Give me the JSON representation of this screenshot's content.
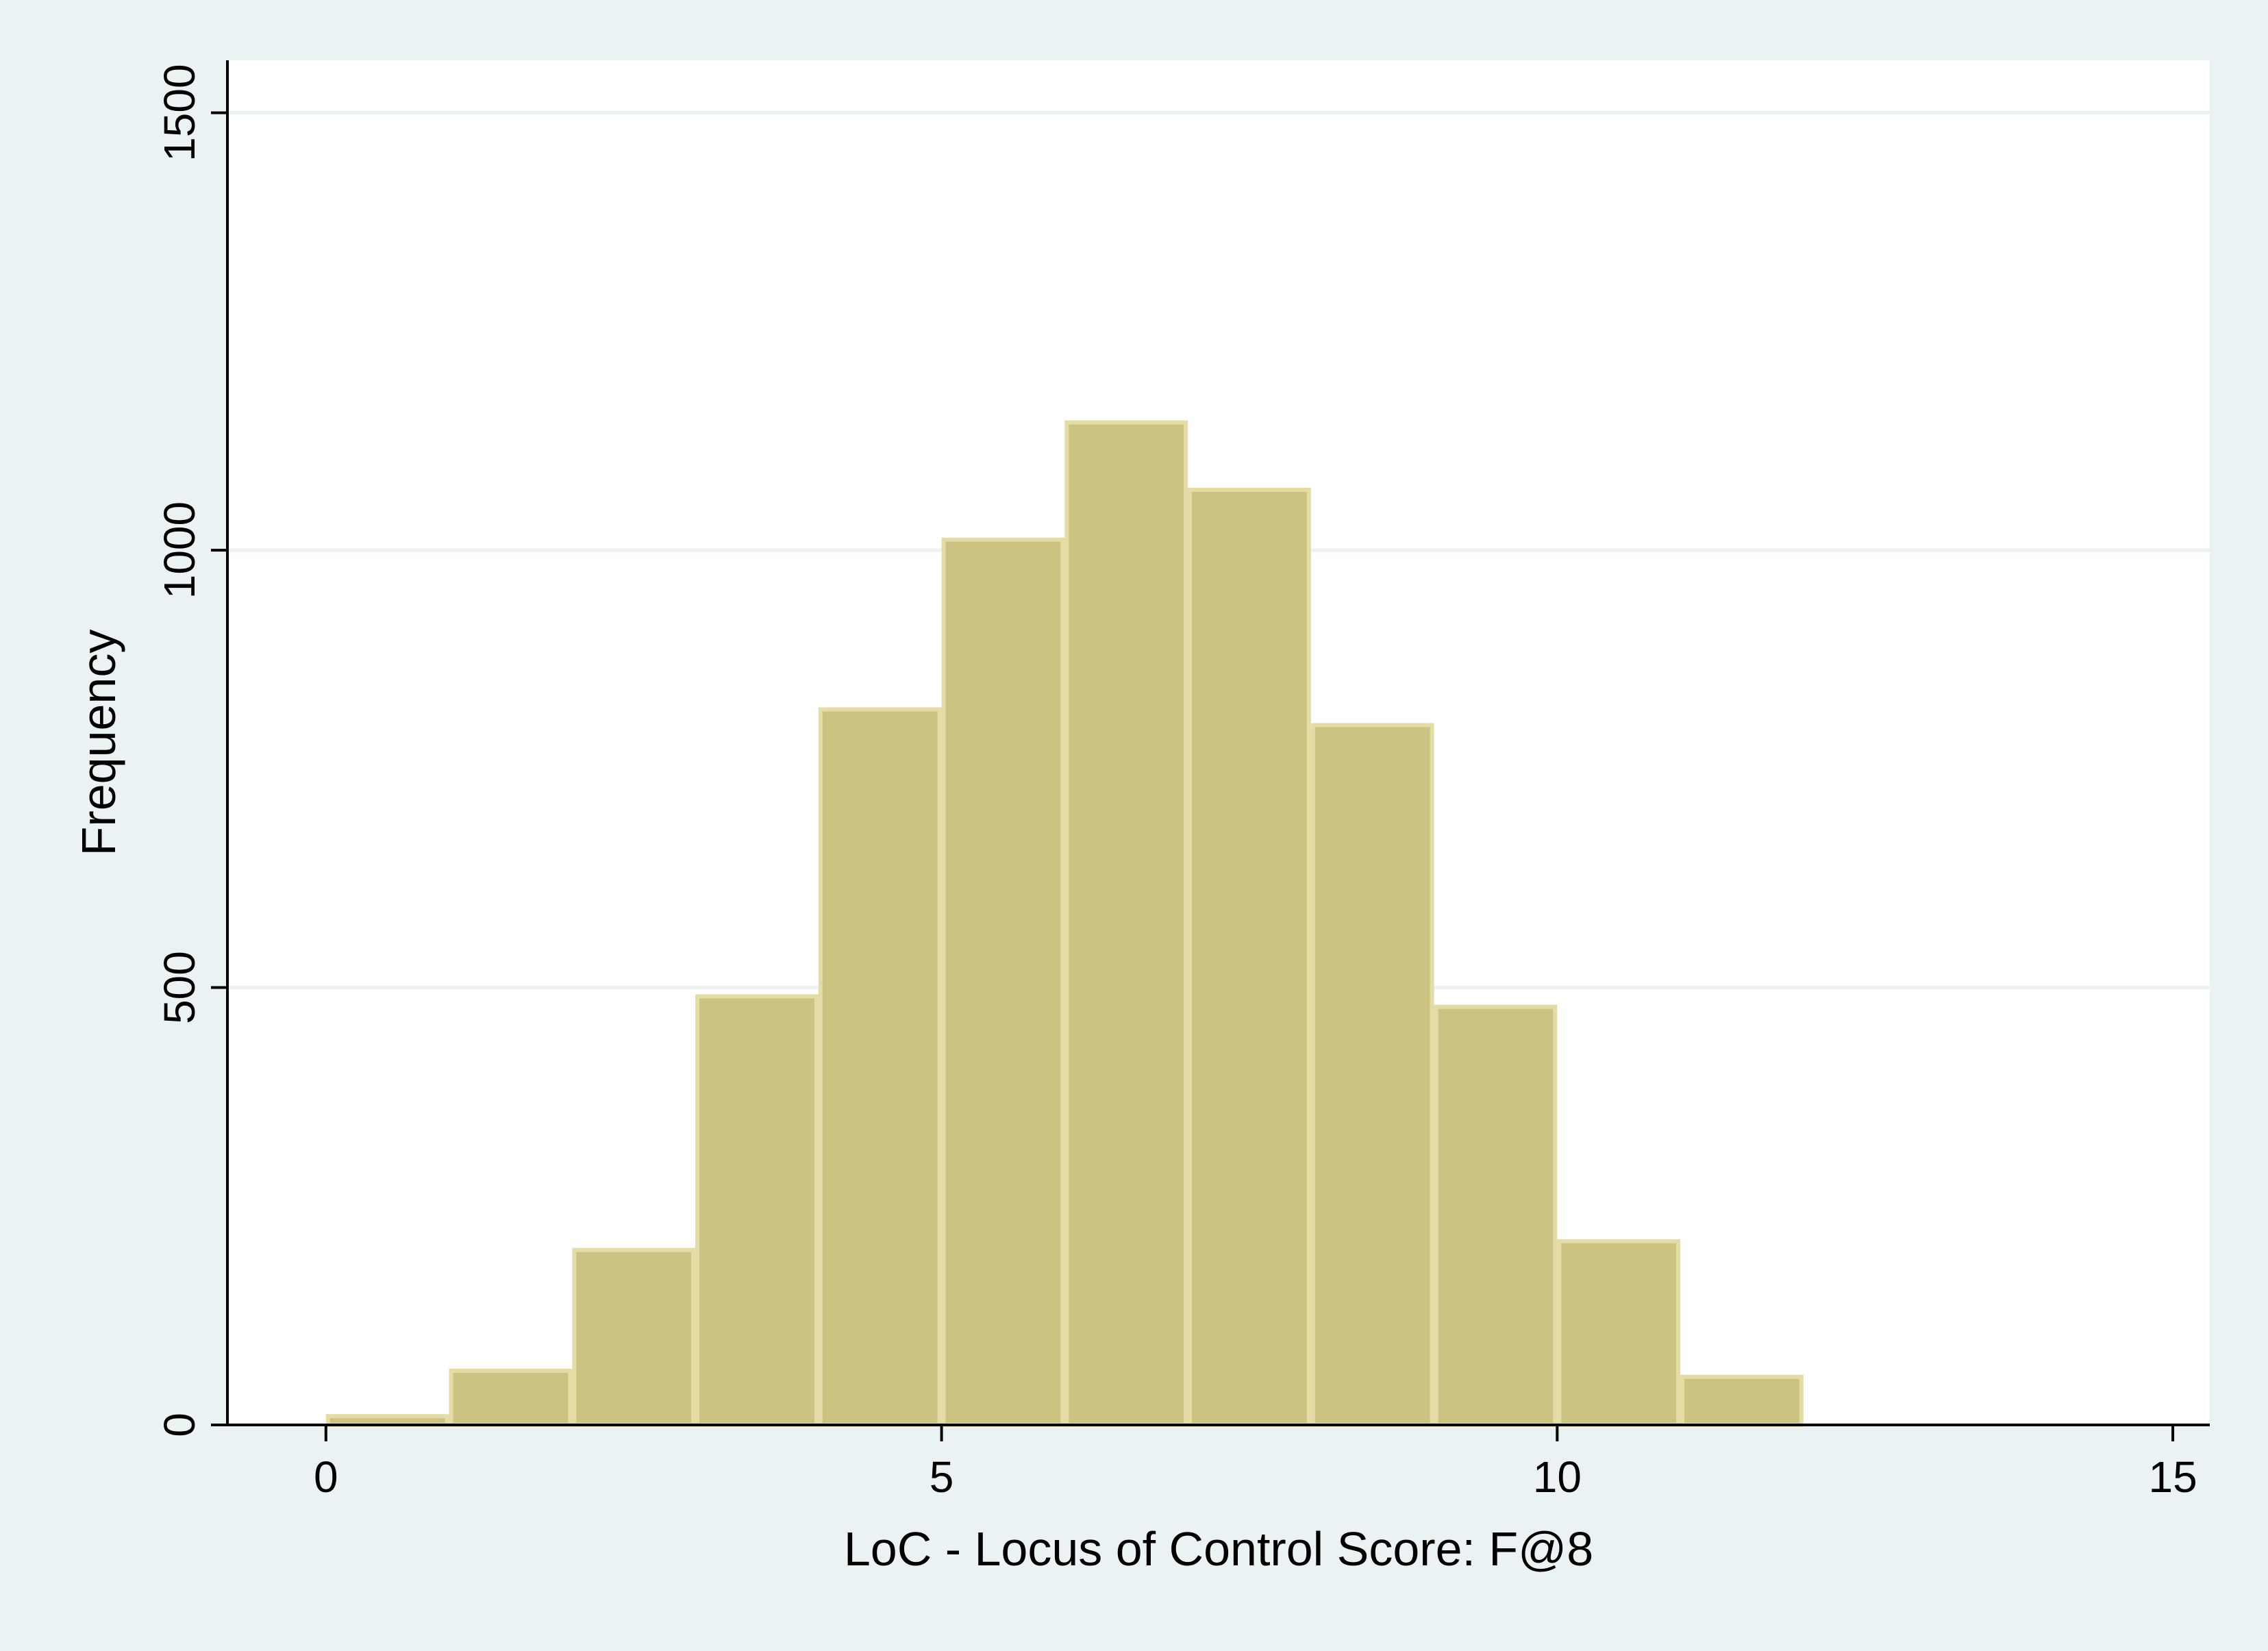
{
  "chart_data": {
    "type": "bar",
    "subtype": "histogram",
    "title": "",
    "xlabel": "LoC - Locus of Control Score: F@8",
    "ylabel": "Frequency",
    "xlim": [
      -0.8,
      15.3
    ],
    "ylim": [
      0,
      1560
    ],
    "x_ticks": [
      0,
      5,
      10,
      15
    ],
    "y_ticks": [
      0,
      500,
      1000,
      1500
    ],
    "grid": "horizontal",
    "legend": "none",
    "bins": [
      {
        "start": 0,
        "end": 1,
        "value": 10
      },
      {
        "start": 1,
        "end": 2,
        "value": 62
      },
      {
        "start": 2,
        "end": 3,
        "value": 200
      },
      {
        "start": 3,
        "end": 4,
        "value": 490
      },
      {
        "start": 4,
        "end": 5,
        "value": 818
      },
      {
        "start": 5,
        "end": 6,
        "value": 1012
      },
      {
        "start": 6,
        "end": 7,
        "value": 1146
      },
      {
        "start": 7,
        "end": 8,
        "value": 1069
      },
      {
        "start": 8,
        "end": 9,
        "value": 800
      },
      {
        "start": 9,
        "end": 10,
        "value": 478
      },
      {
        "start": 10,
        "end": 11,
        "value": 210
      },
      {
        "start": 11,
        "end": 12,
        "value": 55
      },
      {
        "start": 12,
        "end": 13,
        "value": 0
      },
      {
        "start": 13,
        "end": 14,
        "value": 0
      },
      {
        "start": 14,
        "end": 15,
        "value": 0
      }
    ],
    "colors": {
      "background": "#eaf2f3",
      "plot_background": "#ffffff",
      "bar_fill": "#ccc281",
      "bar_edge": "#e3dca4",
      "grid": "#eaf2f3",
      "axis": "#000000"
    }
  }
}
